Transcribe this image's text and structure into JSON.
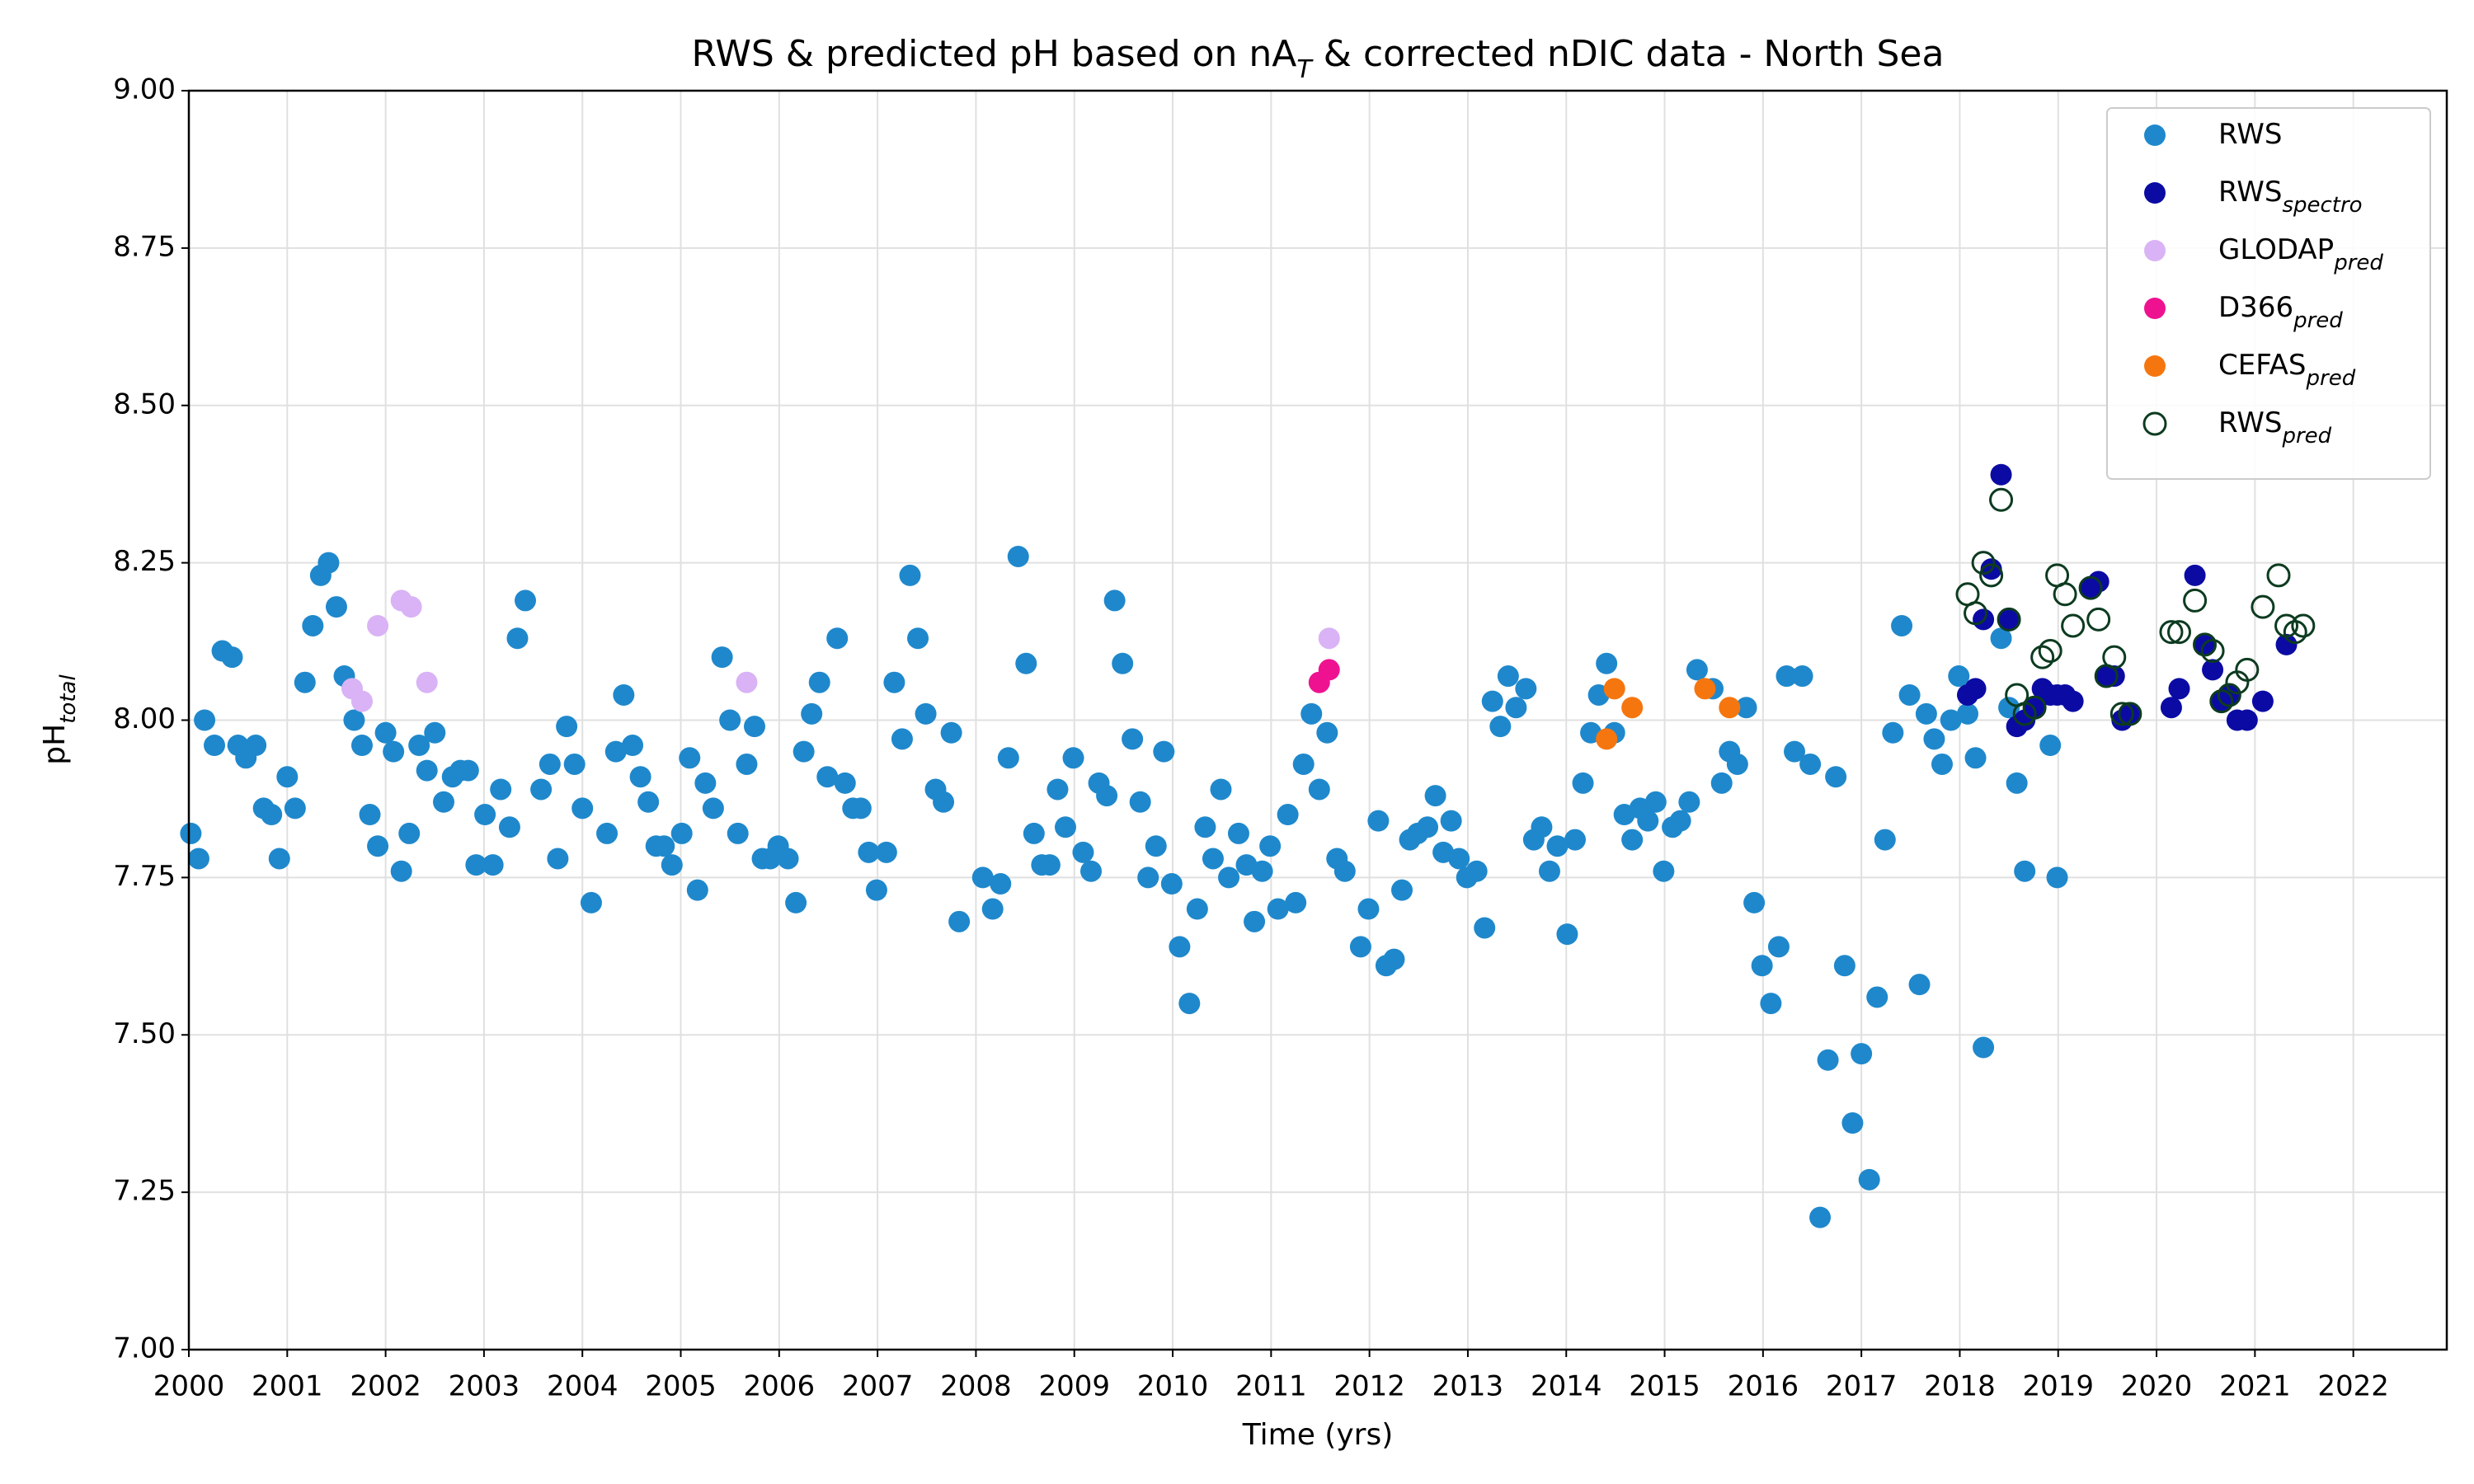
{
  "chart_data": {
    "type": "scatter",
    "title": {
      "text": "RWS & predicted pH based on nA",
      "subscript": "T",
      "text_after": " & corrected nDIC data - North Sea"
    },
    "x_label": "Time (yrs)",
    "y_label": {
      "text": "pH",
      "subscript": "total"
    },
    "xlim": [
      2000,
      2022.95
    ],
    "ylim": [
      7,
      9
    ],
    "xticks": [
      2000,
      2001,
      2002,
      2003,
      2004,
      2005,
      2006,
      2007,
      2008,
      2009,
      2010,
      2011,
      2012,
      2013,
      2014,
      2015,
      2016,
      2017,
      2018,
      2019,
      2020,
      2021,
      2022
    ],
    "yticks": [
      {
        "value": 7,
        "label": "7.00"
      },
      7.25,
      {
        "value": 7.5,
        "label": "7.50"
      },
      7.75,
      {
        "value": 8,
        "label": "8.00"
      },
      8.25,
      {
        "value": 8.5,
        "label": "8.50"
      },
      8.75,
      {
        "value": 9,
        "label": "9.00"
      }
    ],
    "grid": true,
    "legend": "upper right",
    "series": [
      {
        "name": "RWS",
        "color": "#1f88cc",
        "hollow": false,
        "x": [
          2000.02,
          2000.1,
          2000.16,
          2000.26,
          2000.34,
          2000.44,
          2000.5,
          2000.58,
          2000.68,
          2000.76,
          2000.84,
          2000.92,
          2001.0,
          2001.08,
          2001.18,
          2001.26,
          2001.34,
          2001.42,
          2001.5,
          2001.58,
          2001.68,
          2001.76,
          2001.84,
          2001.92,
          2002.0,
          2002.08,
          2002.16,
          2002.24,
          2002.34,
          2002.42,
          2002.5,
          2002.59,
          2002.68,
          2002.76,
          2002.84,
          2002.92,
          2003.01,
          2003.09,
          2003.17,
          2003.26,
          2003.34,
          2003.42,
          2003.58,
          2003.67,
          2003.75,
          2003.84,
          2003.92,
          2004.0,
          2004.09,
          2004.25,
          2004.34,
          2004.42,
          2004.51,
          2004.59,
          2004.67,
          2004.75,
          2004.83,
          2004.91,
          2005.01,
          2005.09,
          2005.17,
          2005.25,
          2005.33,
          2005.42,
          2005.5,
          2005.58,
          2005.67,
          2005.75,
          2005.83,
          2005.91,
          2005.99,
          2006.09,
          2006.17,
          2006.25,
          2006.33,
          2006.41,
          2006.49,
          2006.59,
          2006.67,
          2006.75,
          2006.83,
          2006.91,
          2006.99,
          2007.09,
          2007.17,
          2007.25,
          2007.33,
          2007.41,
          2007.49,
          2007.59,
          2007.67,
          2007.75,
          2007.83,
          2008.07,
          2008.17,
          2008.25,
          2008.33,
          2008.43,
          2008.51,
          2008.59,
          2008.67,
          2008.75,
          2008.83,
          2008.91,
          2008.99,
          2009.09,
          2009.17,
          2009.25,
          2009.33,
          2009.41,
          2009.49,
          2009.59,
          2009.67,
          2009.75,
          2009.83,
          2009.91,
          2009.99,
          2010.07,
          2010.17,
          2010.25,
          2010.33,
          2010.41,
          2010.49,
          2010.57,
          2010.67,
          2010.75,
          2010.83,
          2010.91,
          2010.99,
          2011.07,
          2011.17,
          2011.25,
          2011.33,
          2011.41,
          2011.49,
          2011.57,
          2011.67,
          2011.75,
          2011.91,
          2011.99,
          2012.09,
          2012.17,
          2012.25,
          2012.33,
          2012.41,
          2012.49,
          2012.59,
          2012.67,
          2012.75,
          2012.83,
          2012.91,
          2012.99,
          2013.09,
          2013.17,
          2013.25,
          2013.33,
          2013.41,
          2013.49,
          2013.59,
          2013.67,
          2013.75,
          2013.83,
          2013.91,
          2014.01,
          2014.09,
          2014.17,
          2014.25,
          2014.33,
          2014.41,
          2014.49,
          2014.59,
          2014.67,
          2014.75,
          2014.83,
          2014.91,
          2014.99,
          2015.08,
          2015.16,
          2015.25,
          2015.33,
          2015.49,
          2015.58,
          2015.66,
          2015.74,
          2015.83,
          2015.91,
          2015.99,
          2016.08,
          2016.16,
          2016.24,
          2016.32,
          2016.4,
          2016.48,
          2016.58,
          2016.66,
          2016.74,
          2016.83,
          2016.91,
          2017.0,
          2017.08,
          2017.16,
          2017.24,
          2017.32,
          2017.41,
          2017.49,
          2017.59,
          2017.66,
          2017.74,
          2017.82,
          2017.91,
          2017.99,
          2018.08,
          2018.16,
          2018.24,
          2018.42,
          2018.5,
          2018.58,
          2018.66,
          2018.92,
          2018.99
        ],
        "values": [
          7.82,
          7.78,
          8.0,
          7.96,
          8.11,
          8.1,
          7.96,
          7.94,
          7.96,
          7.86,
          7.85,
          7.78,
          7.91,
          7.86,
          8.06,
          8.15,
          8.23,
          8.25,
          8.18,
          8.07,
          8.0,
          7.96,
          7.85,
          7.8,
          7.98,
          7.95,
          7.76,
          7.82,
          7.96,
          7.92,
          7.98,
          7.87,
          7.91,
          7.92,
          7.92,
          7.77,
          7.85,
          7.77,
          7.89,
          7.83,
          8.13,
          8.19,
          7.89,
          7.93,
          7.78,
          7.99,
          7.93,
          7.86,
          7.71,
          7.82,
          7.95,
          8.04,
          7.96,
          7.91,
          7.87,
          7.8,
          7.8,
          7.77,
          7.82,
          7.94,
          7.73,
          7.9,
          7.86,
          8.1,
          8.0,
          7.82,
          7.93,
          7.99,
          7.78,
          7.78,
          7.8,
          7.78,
          7.71,
          7.95,
          8.01,
          8.06,
          7.91,
          8.13,
          7.9,
          7.86,
          7.86,
          7.79,
          7.73,
          7.79,
          8.06,
          7.97,
          8.23,
          8.13,
          8.01,
          7.89,
          7.87,
          7.98,
          7.68,
          7.75,
          7.7,
          7.74,
          7.94,
          8.26,
          8.09,
          7.82,
          7.77,
          7.77,
          7.89,
          7.83,
          7.94,
          7.79,
          7.76,
          7.9,
          7.88,
          8.19,
          8.09,
          7.97,
          7.87,
          7.75,
          7.8,
          7.95,
          7.74,
          7.64,
          7.55,
          7.7,
          7.83,
          7.78,
          7.89,
          7.75,
          7.82,
          7.77,
          7.68,
          7.76,
          7.8,
          7.7,
          7.85,
          7.71,
          7.93,
          8.01,
          7.89,
          7.98,
          7.78,
          7.76,
          7.64,
          7.7,
          7.84,
          7.61,
          7.62,
          7.73,
          7.81,
          7.82,
          7.83,
          7.88,
          7.79,
          7.84,
          7.78,
          7.75,
          7.76,
          7.67,
          8.03,
          7.99,
          8.07,
          8.02,
          8.05,
          7.81,
          7.83,
          7.76,
          7.8,
          7.66,
          7.81,
          7.9,
          7.98,
          8.04,
          8.09,
          7.98,
          7.85,
          7.81,
          7.86,
          7.84,
          7.87,
          7.76,
          7.83,
          7.84,
          7.87,
          8.08,
          8.05,
          7.9,
          7.95,
          7.93,
          8.02,
          7.71,
          7.61,
          7.55,
          7.64,
          8.07,
          7.95,
          8.07,
          7.93,
          7.21,
          7.46,
          7.91,
          7.61,
          7.36,
          7.47,
          7.27,
          7.56,
          7.81,
          7.98,
          8.15,
          8.04,
          7.58,
          8.01,
          7.97,
          7.93,
          8.0,
          8.07,
          8.01,
          7.94,
          7.48,
          8.13,
          8.02,
          7.9,
          7.76,
          7.96,
          7.75
        ]
      },
      {
        "name": "RWS",
        "subscript": "spectro",
        "color": "#0b0ba3",
        "hollow": false,
        "x": [
          2018.08,
          2018.16,
          2018.24,
          2018.32,
          2018.42,
          2018.5,
          2018.58,
          2018.66,
          2018.76,
          2018.84,
          2018.92,
          2018.99,
          2019.07,
          2019.15,
          2019.33,
          2019.41,
          2019.49,
          2019.57,
          2019.65,
          2019.73,
          2020.15,
          2020.23,
          2020.39,
          2020.49,
          2020.57,
          2020.66,
          2020.74,
          2020.82,
          2020.92,
          2021.08,
          2021.32
        ],
        "values": [
          8.04,
          8.05,
          8.16,
          8.24,
          8.39,
          8.16,
          7.99,
          8.0,
          8.02,
          8.05,
          8.04,
          8.04,
          8.04,
          8.03,
          8.21,
          8.22,
          8.07,
          8.07,
          8.0,
          8.01,
          8.02,
          8.05,
          8.23,
          8.12,
          8.08,
          8.03,
          8.04,
          8.0,
          8.0,
          8.03,
          8.12
        ]
      },
      {
        "name": "GLODAP",
        "subscript": "pred",
        "color": "#d9b3f5",
        "hollow": false,
        "x": [
          2001.66,
          2001.76,
          2001.92,
          2002.16,
          2002.26,
          2002.42,
          2005.67,
          2011.59
        ],
        "values": [
          8.05,
          8.03,
          8.15,
          8.19,
          8.18,
          8.06,
          8.06,
          8.13
        ]
      },
      {
        "name": "D366",
        "subscript": "pred",
        "color": "#ee1290",
        "hollow": false,
        "x": [
          2011.49,
          2011.59
        ],
        "values": [
          8.06,
          8.08
        ]
      },
      {
        "name": "CEFAS",
        "subscript": "pred",
        "color": "#f5760f",
        "hollow": false,
        "x": [
          2014.41,
          2014.49,
          2014.67,
          2015.41,
          2015.66
        ],
        "values": [
          7.97,
          8.05,
          8.02,
          8.05,
          8.02
        ]
      },
      {
        "name": "RWS",
        "subscript": "pred",
        "color": "#0d3b20",
        "hollow": true,
        "x": [
          2018.08,
          2018.16,
          2018.24,
          2018.32,
          2018.42,
          2018.5,
          2018.58,
          2018.66,
          2018.76,
          2018.84,
          2018.92,
          2018.99,
          2019.07,
          2019.15,
          2019.33,
          2019.41,
          2019.49,
          2019.57,
          2019.65,
          2019.73,
          2020.15,
          2020.23,
          2020.39,
          2020.49,
          2020.57,
          2020.66,
          2020.74,
          2020.82,
          2020.92,
          2021.08,
          2021.24,
          2021.32,
          2021.41,
          2021.49
        ],
        "values": [
          8.2,
          8.17,
          8.25,
          8.23,
          8.35,
          8.16,
          8.04,
          8.01,
          8.02,
          8.1,
          8.11,
          8.23,
          8.2,
          8.15,
          8.21,
          8.16,
          8.07,
          8.1,
          8.01,
          8.01,
          8.14,
          8.14,
          8.19,
          8.12,
          8.11,
          8.03,
          8.04,
          8.06,
          8.08,
          8.18,
          8.23,
          8.15,
          8.14,
          8.15
        ]
      }
    ]
  }
}
